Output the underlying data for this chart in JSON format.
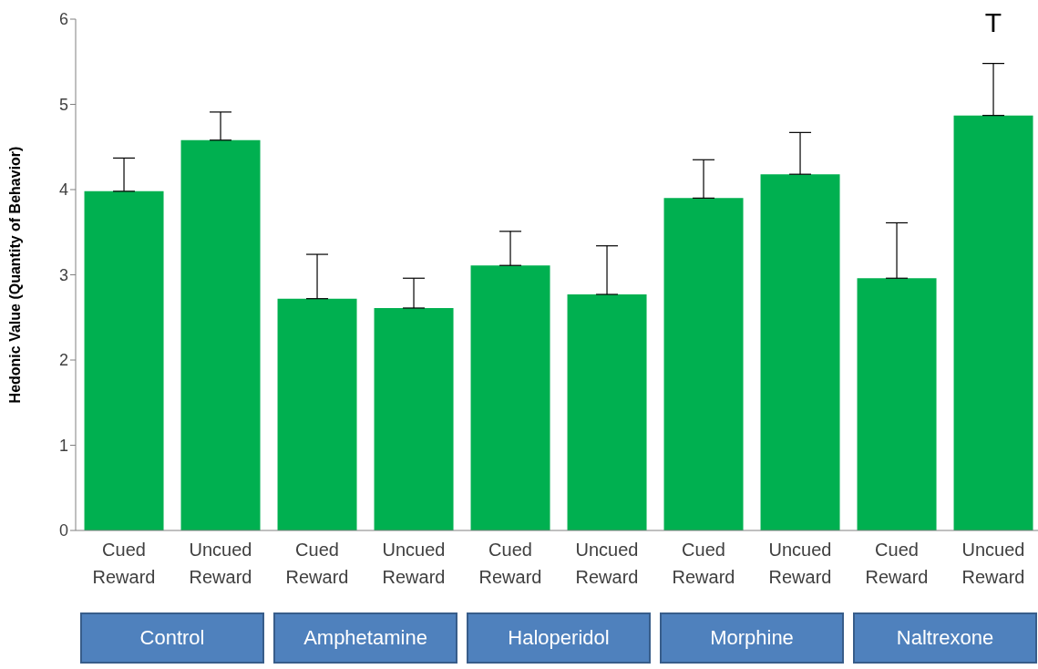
{
  "chart_data": {
    "type": "bar",
    "ylabel": "Hedonic Value (Quantity of Behavior)",
    "categories": [
      "Cued Reward",
      "Uncued Reward",
      "Cued Reward",
      "Uncued Reward",
      "Cued Reward",
      "Uncued Reward",
      "Cued Reward",
      "Uncued Reward",
      "Cued Reward",
      "Uncued Reward"
    ],
    "values": [
      3.98,
      4.58,
      2.72,
      2.61,
      3.11,
      2.77,
      3.9,
      4.18,
      2.96,
      4.87
    ],
    "errors": [
      [
        3.98,
        4.37
      ],
      [
        4.58,
        4.91
      ],
      [
        2.72,
        3.24
      ],
      [
        2.61,
        2.96
      ],
      [
        3.11,
        3.51
      ],
      [
        2.77,
        3.34
      ],
      [
        3.9,
        4.35
      ],
      [
        4.18,
        4.67
      ],
      [
        2.96,
        3.61
      ],
      [
        4.87,
        5.48
      ]
    ],
    "color": "#00b050",
    "ylim": [
      0,
      6
    ],
    "yticks": [
      0,
      1,
      2,
      3,
      4,
      5,
      6
    ],
    "grid": false,
    "legend": false,
    "annotations": [
      "Control",
      "Amphetamine",
      "Haloperidol",
      "Morphine",
      "Naltrexone",
      "T"
    ]
  }
}
